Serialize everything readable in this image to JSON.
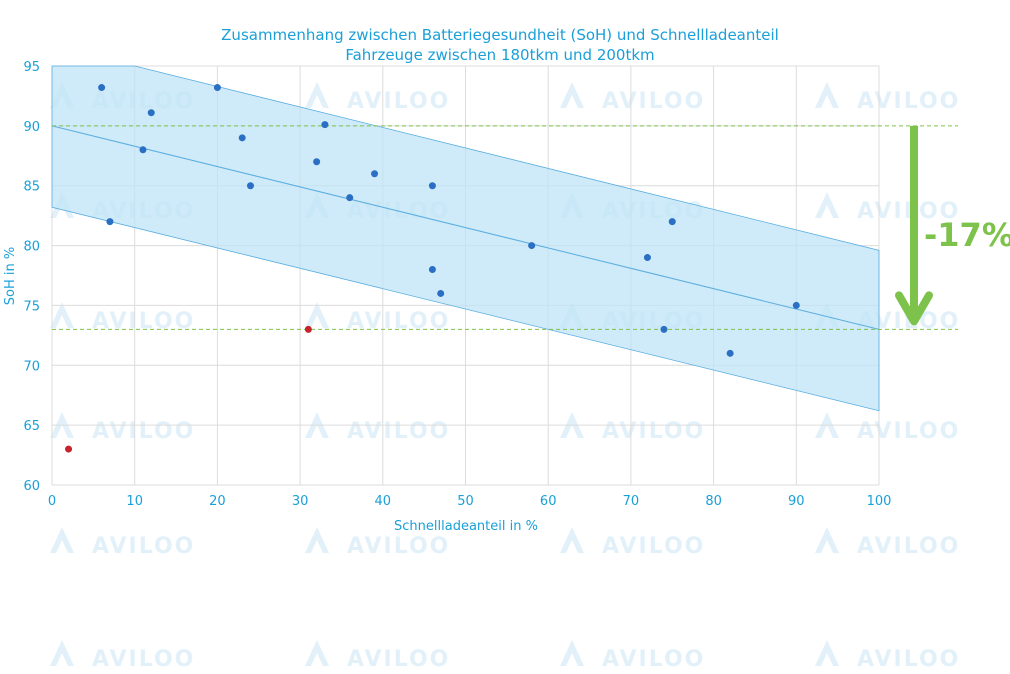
{
  "watermark": {
    "text": "AVILOO"
  },
  "annotation": {
    "text": "-17%",
    "color": "#7dc24b"
  },
  "colors": {
    "accent": "#1a9fd8",
    "point": "#2a6fc4",
    "outlier": "#c8232c",
    "band": "#bfe3f5",
    "trend": "#5aaee0",
    "reference": "#7dc24b",
    "grid": "#dcdcdc"
  },
  "chart_data": {
    "type": "scatter",
    "title": "Zusammenhang zwischen Batteriegesundheit (SoH) und Schnellladeanteil",
    "subtitle": "Fahrzeuge zwischen 180tkm und 200tkm",
    "xlabel": "Schnellladeanteil in %",
    "ylabel": "SoH in %",
    "xlim": [
      0,
      100
    ],
    "ylim": [
      60,
      95
    ],
    "xticks": [
      "0",
      "10",
      "20",
      "30",
      "40",
      "50",
      "60",
      "70",
      "80",
      "90",
      "100"
    ],
    "yticks": [
      "60",
      "65",
      "70",
      "75",
      "80",
      "85",
      "90",
      "95"
    ],
    "grid": true,
    "points": [
      {
        "x": 6,
        "y": 93.2
      },
      {
        "x": 12,
        "y": 91.1
      },
      {
        "x": 20,
        "y": 93.2
      },
      {
        "x": 11,
        "y": 88.0
      },
      {
        "x": 23,
        "y": 89.0
      },
      {
        "x": 33,
        "y": 90.1
      },
      {
        "x": 32,
        "y": 87.0
      },
      {
        "x": 39,
        "y": 86.0
      },
      {
        "x": 24,
        "y": 85.0
      },
      {
        "x": 46,
        "y": 85.0
      },
      {
        "x": 36,
        "y": 84.0
      },
      {
        "x": 7,
        "y": 82.0
      },
      {
        "x": 58,
        "y": 80.0
      },
      {
        "x": 75,
        "y": 82.0
      },
      {
        "x": 72,
        "y": 79.0
      },
      {
        "x": 46,
        "y": 78.0
      },
      {
        "x": 47,
        "y": 76.0
      },
      {
        "x": 90,
        "y": 75.0
      },
      {
        "x": 74,
        "y": 73.0
      },
      {
        "x": 82,
        "y": 71.0
      }
    ],
    "outliers": [
      {
        "x": 31,
        "y": 73.0
      },
      {
        "x": 2,
        "y": 63.0
      }
    ],
    "trend": {
      "x": [
        0,
        100
      ],
      "y": [
        90.0,
        73.0
      ]
    },
    "band": {
      "upper": [
        95.0,
        79.6
      ],
      "lower": [
        83.2,
        66.2
      ],
      "upper_start_x": 10,
      "upper_start_y": 95.0
    },
    "reference_lines": [
      90.0,
      73.0
    ]
  }
}
